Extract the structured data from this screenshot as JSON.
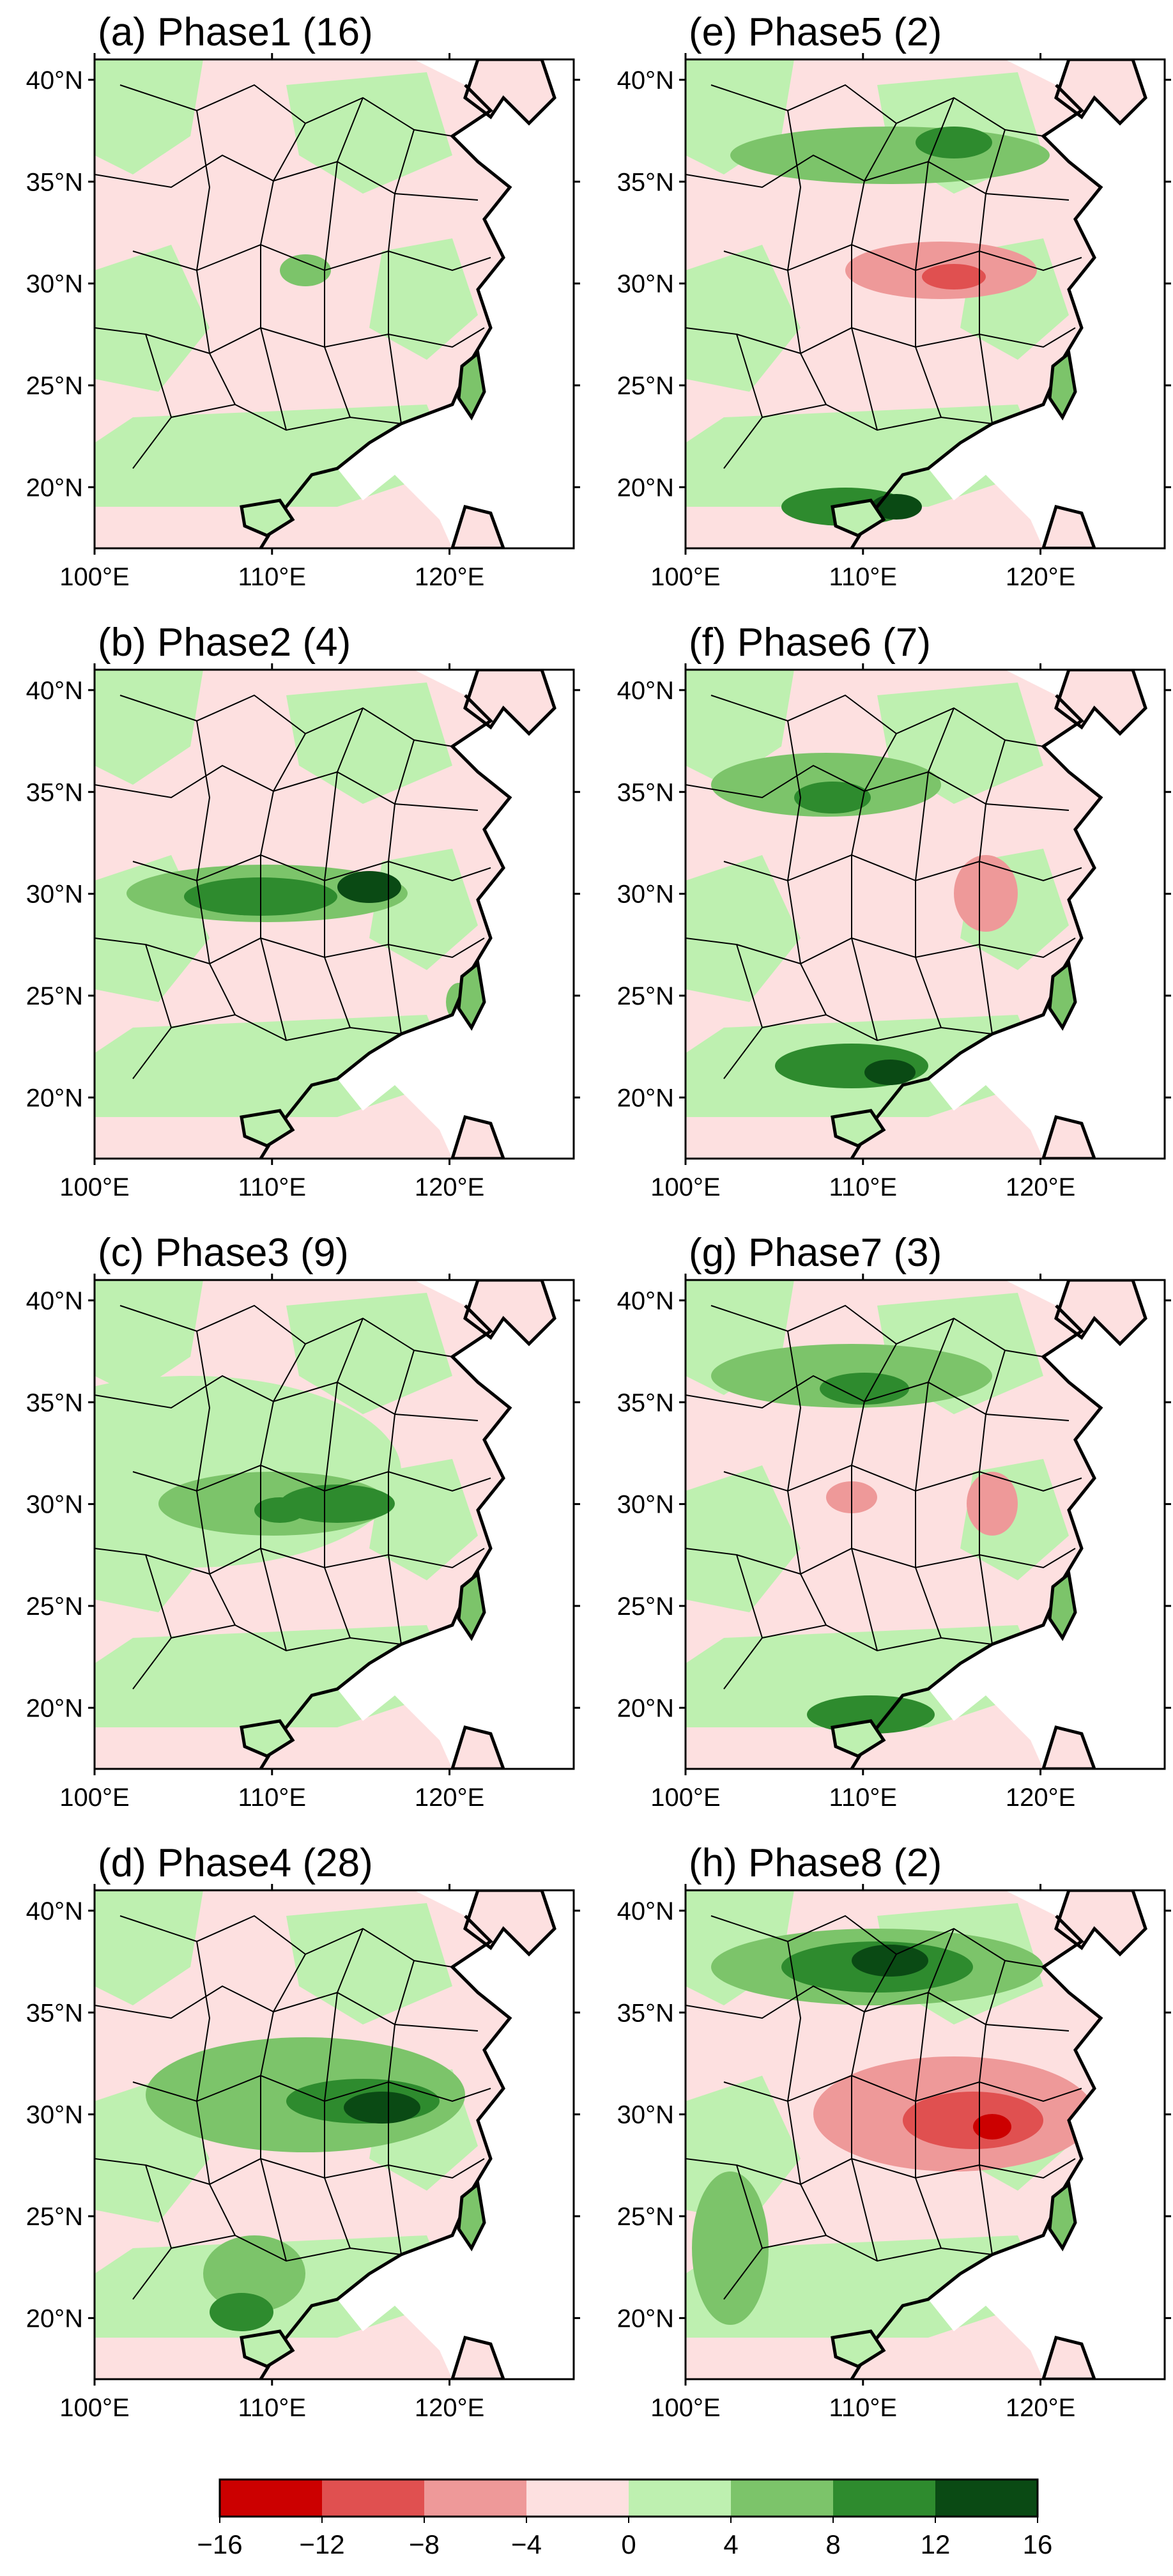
{
  "panels": [
    {
      "id": "a",
      "title": "(a) Phase1  (16)",
      "phase": 1,
      "count": 16
    },
    {
      "id": "e",
      "title": "(e) Phase5  (2)",
      "phase": 5,
      "count": 2
    },
    {
      "id": "b",
      "title": "(b) Phase2  (4)",
      "phase": 2,
      "count": 4
    },
    {
      "id": "f",
      "title": "(f) Phase6  (7)",
      "phase": 6,
      "count": 7
    },
    {
      "id": "c",
      "title": "(c) Phase3  (9)",
      "phase": 3,
      "count": 9
    },
    {
      "id": "g",
      "title": "(g) Phase7  (3)",
      "phase": 7,
      "count": 3
    },
    {
      "id": "d",
      "title": "(d) Phase4  (28)",
      "phase": 4,
      "count": 28
    },
    {
      "id": "h",
      "title": "(h) Phase8  (2)",
      "phase": 8,
      "count": 2
    }
  ],
  "axes": {
    "lat_ticks": [
      "40°N",
      "35°N",
      "30°N",
      "25°N",
      "20°N"
    ],
    "lat_values": [
      40,
      35,
      30,
      25,
      20
    ],
    "lon_ticks": [
      "100°E",
      "110°E",
      "120°E"
    ],
    "lon_values": [
      100,
      110,
      120
    ],
    "lon_range": [
      100,
      127
    ],
    "lat_range": [
      17,
      41
    ]
  },
  "colorbar": {
    "levels": [
      -16,
      -12,
      -8,
      -4,
      0,
      4,
      8,
      12,
      16
    ],
    "labels": [
      "−16",
      "−12",
      "−8",
      "−4",
      "0",
      "4",
      "8",
      "12",
      "16"
    ],
    "colors": [
      "#cc0000",
      "#e05050",
      "#ee9999",
      "#fde0e0",
      "#bef0b0",
      "#7cc46a",
      "#2e8b2e",
      "#0a4a14"
    ]
  }
}
